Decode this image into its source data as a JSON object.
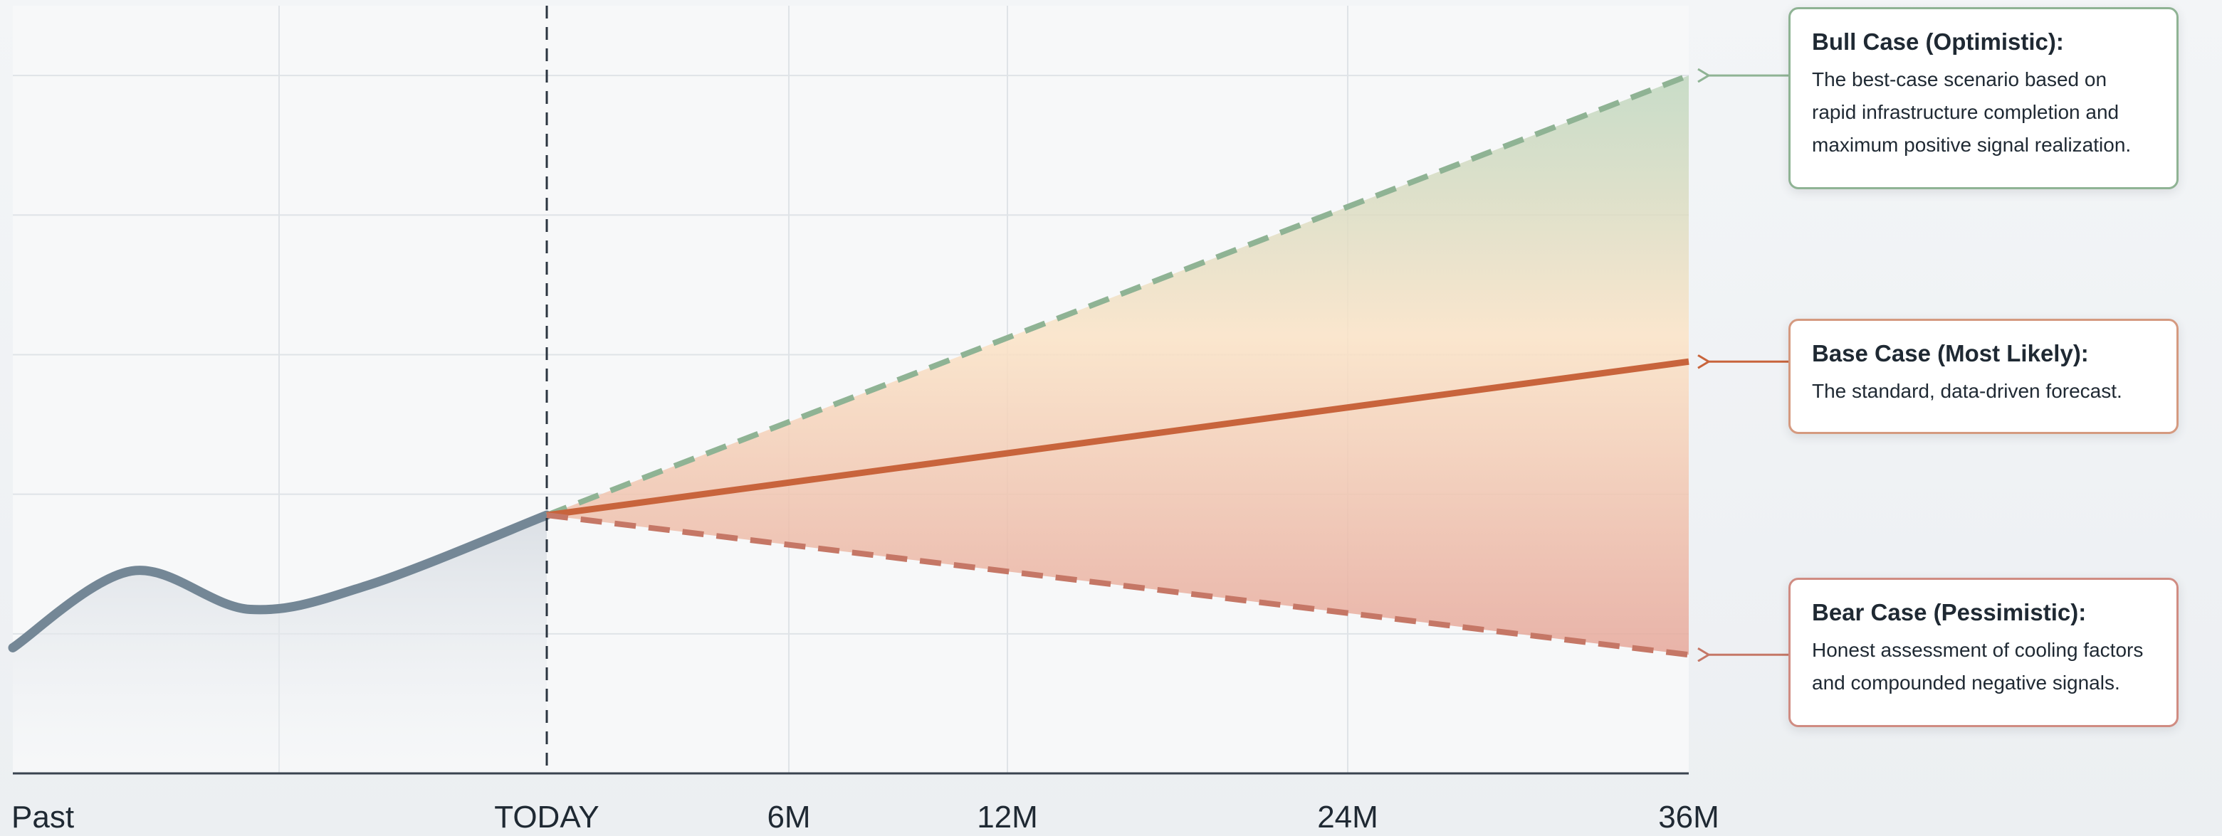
{
  "chart_data": {
    "type": "line",
    "title": "",
    "xlabel": "",
    "ylabel": "",
    "x_tick_labels": [
      "Past",
      "TODAY",
      "6M",
      "12M",
      "24M",
      "36M"
    ],
    "x_tick_months": [
      -18,
      0,
      6,
      12,
      24,
      36
    ],
    "ylim": [
      0,
      11
    ],
    "grid": true,
    "series": [
      {
        "key": "historical",
        "style": "solid",
        "color": "#748796",
        "points": [
          [
            -18,
            1.8
          ],
          [
            -14,
            2.9
          ],
          [
            -10,
            2.35
          ],
          [
            -6,
            2.7
          ],
          [
            0,
            3.7
          ]
        ]
      },
      {
        "key": "bull",
        "style": "dashed",
        "color": "#8fb394",
        "points": [
          [
            0,
            3.7
          ],
          [
            36,
            10.0
          ]
        ]
      },
      {
        "key": "base",
        "style": "solid",
        "color": "#c8643c",
        "points": [
          [
            0,
            3.7
          ],
          [
            36,
            5.9
          ]
        ]
      },
      {
        "key": "bear",
        "style": "dashed",
        "color": "#c57766",
        "points": [
          [
            0,
            3.7
          ],
          [
            36,
            1.7
          ]
        ]
      }
    ],
    "today_marker": 0
  },
  "callouts": [
    {
      "key": "bull",
      "title": "Bull Case (Optimistic):",
      "lines": [
        "The best-case scenario based on",
        "rapid infrastructure completion and",
        "maximum positive signal realization."
      ],
      "color": "#8fb394"
    },
    {
      "key": "base",
      "title": "Base Case (Most Likely):",
      "lines": [
        "The standard, data-driven forecast."
      ],
      "color": "#c8643c"
    },
    {
      "key": "bear",
      "title": "Bear Case (Pessimistic):",
      "lines": [
        "Honest assessment of cooling factors",
        "and compounded negative signals."
      ],
      "color": "#c57766"
    }
  ]
}
